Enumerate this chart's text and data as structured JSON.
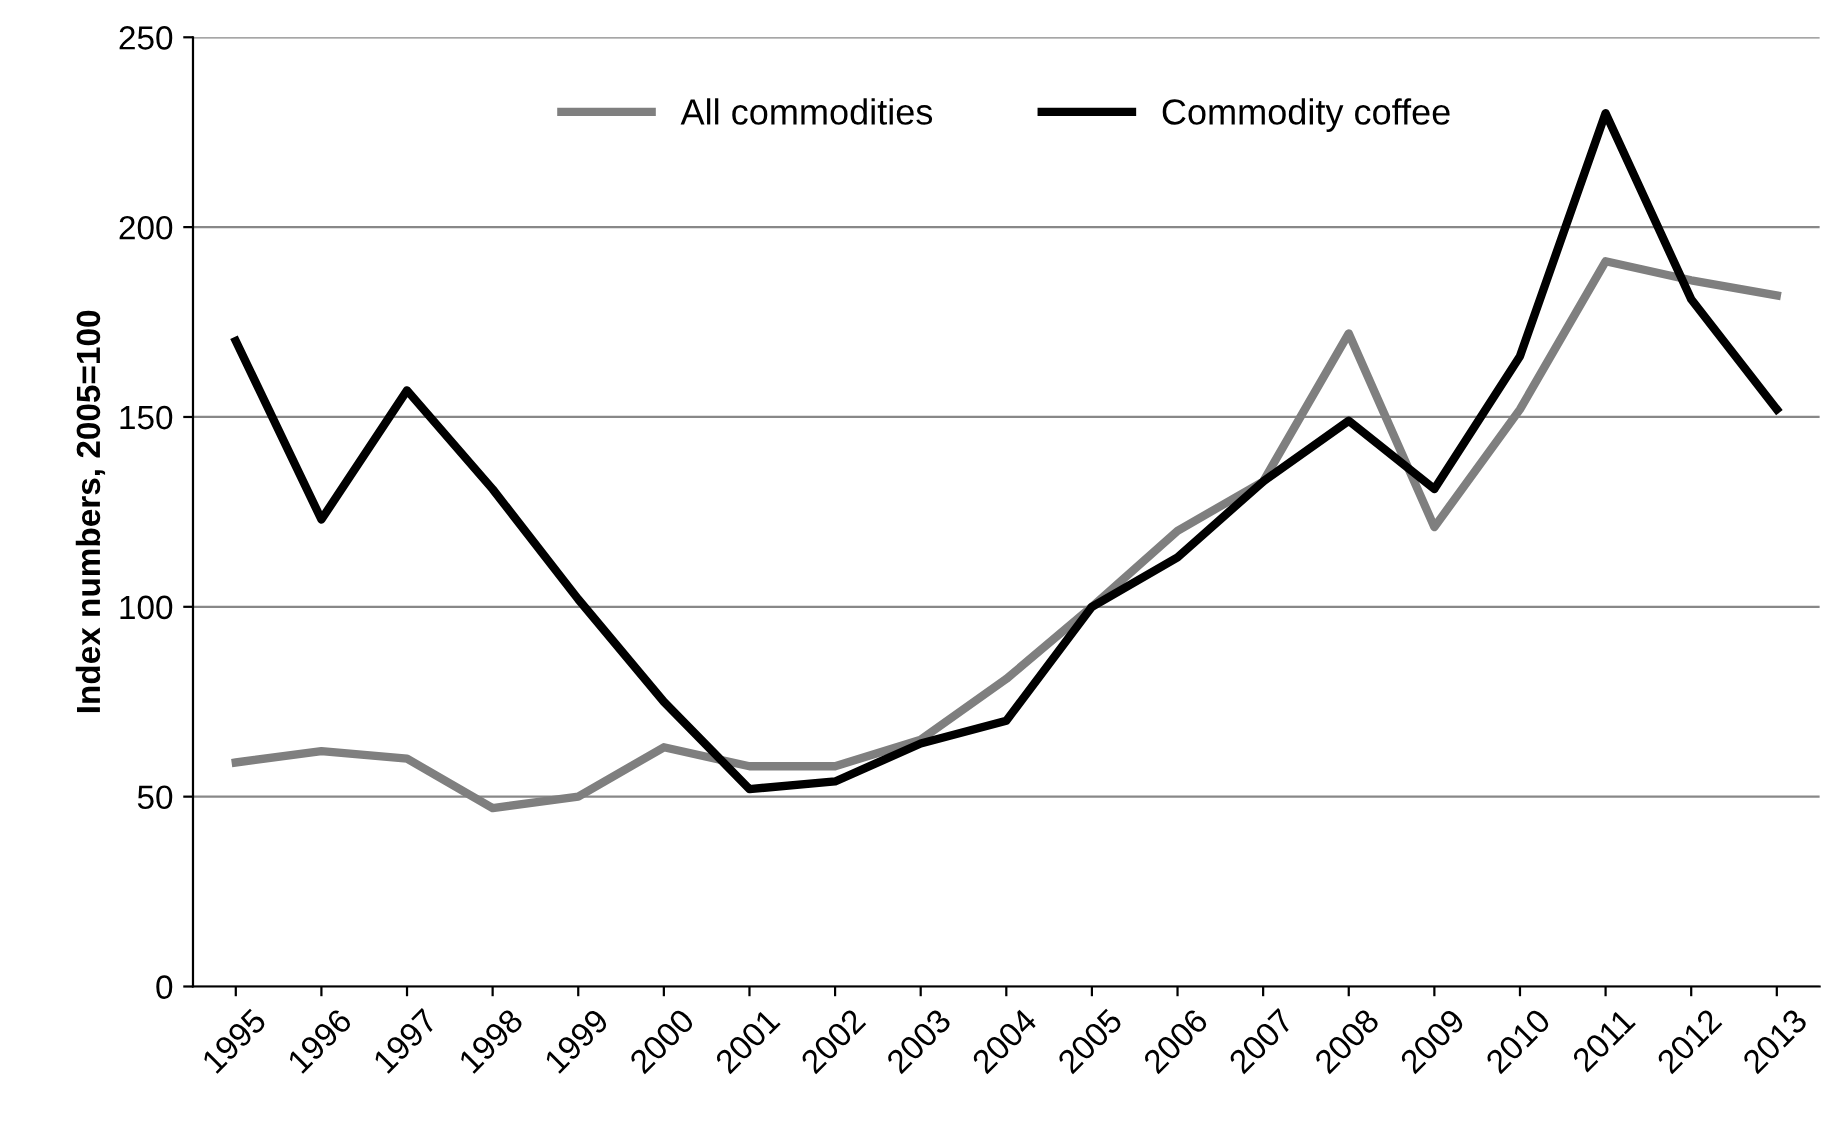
{
  "chart_data": {
    "type": "line",
    "ylabel": "Index numbers, 2005=100",
    "categories": [
      "1995",
      "1996",
      "1997",
      "1998",
      "1999",
      "2000",
      "2001",
      "2002",
      "2003",
      "2004",
      "2005",
      "2006",
      "2007",
      "2008",
      "2009",
      "2010",
      "2011",
      "2012",
      "2013"
    ],
    "series": [
      {
        "name": "All commodities",
        "color": "#7f7f7f",
        "values": [
          59,
          62,
          60,
          47,
          50,
          63,
          58,
          58,
          65,
          81,
          100,
          120,
          133,
          172,
          121,
          152,
          191,
          186,
          182
        ]
      },
      {
        "name": "Commodity coffee",
        "color": "#000000",
        "values": [
          170,
          123,
          157,
          131,
          102,
          75,
          52,
          54,
          64,
          70,
          100,
          113,
          133,
          149,
          131,
          166,
          230,
          181,
          152
        ]
      }
    ],
    "ylim": [
      0,
      250
    ],
    "yticks": [
      0,
      50,
      100,
      150,
      200,
      250
    ],
    "grid": "y",
    "legend": "top",
    "marker": "none",
    "line_style": "solid"
  }
}
